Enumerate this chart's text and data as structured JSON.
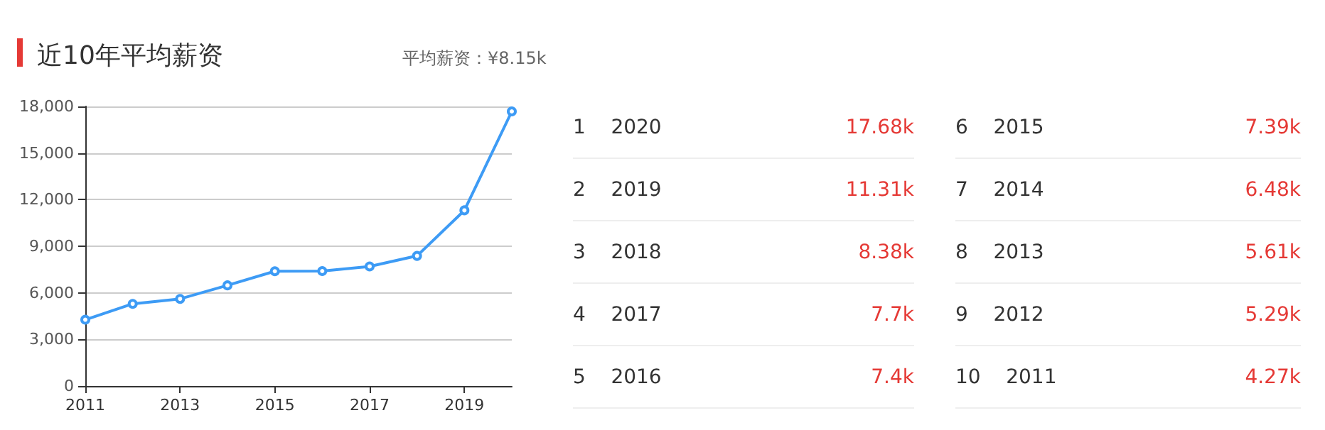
{
  "chart_data": [
    {
      "type": "line",
      "title": "近10年平均薪资",
      "subtitle": "平均薪资：¥8.15k",
      "x": [
        2011,
        2012,
        2013,
        2014,
        2015,
        2016,
        2017,
        2018,
        2019,
        2020
      ],
      "values": [
        4270,
        5290,
        5610,
        6480,
        7390,
        7400,
        7700,
        8380,
        11310,
        17680
      ],
      "color": "#3d9bf5",
      "marker": "circle",
      "grid": "y",
      "xlim": [
        2011,
        2020
      ],
      "xticks": [
        2011,
        2013,
        2015,
        2017,
        2019
      ],
      "ylim": [
        0,
        18000
      ],
      "yticks": [
        0,
        {
          "value": 3000,
          "label": "3,000"
        },
        {
          "value": 6000,
          "label": "6,000"
        },
        {
          "value": 9000,
          "label": "9,000"
        },
        {
          "value": 12000,
          "label": "12,000"
        },
        {
          "value": 15000,
          "label": "15,000"
        },
        {
          "value": 18000,
          "label": "18,000"
        }
      ]
    },
    {
      "type": "other",
      "categories": [
        "1    2020",
        "2    2019",
        "3    2018",
        "4    2017",
        "5    2016",
        "6    2015",
        "7    2014",
        "8    2013",
        "9    2012",
        "10    2011"
      ],
      "value_labels": [
        "17.68k",
        "11.31k",
        "8.38k",
        "7.7k",
        "7.4k",
        "7.39k",
        "6.48k",
        "5.61k",
        "5.29k",
        "4.27k"
      ],
      "color": "#e53935"
    }
  ]
}
